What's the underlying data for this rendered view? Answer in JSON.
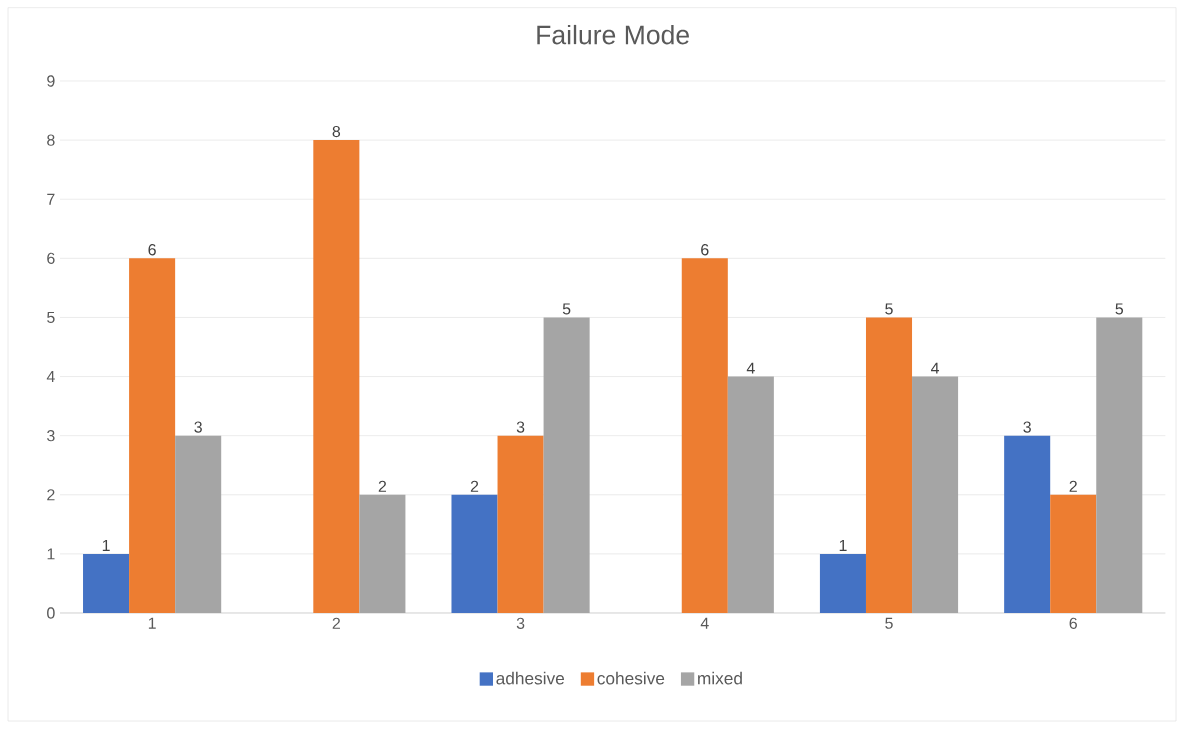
{
  "chart_data": {
    "type": "bar",
    "title": "Failure Mode",
    "categories": [
      "1",
      "2",
      "3",
      "4",
      "5",
      "6"
    ],
    "series": [
      {
        "name": "adhesive",
        "color": "#4472c4",
        "values": [
          1,
          null,
          2,
          null,
          1,
          3
        ]
      },
      {
        "name": "cohesive",
        "color": "#ed7d31",
        "values": [
          6,
          8,
          3,
          6,
          5,
          2
        ]
      },
      {
        "name": "mixed",
        "color": "#a5a5a5",
        "values": [
          3,
          2,
          5,
          4,
          4,
          5
        ]
      }
    ],
    "ylim": [
      0,
      9
    ],
    "yticks": [
      0,
      1,
      2,
      3,
      4,
      5,
      6,
      7,
      8,
      9
    ],
    "grid": "y",
    "legend": "bottom",
    "data_labels": true
  }
}
